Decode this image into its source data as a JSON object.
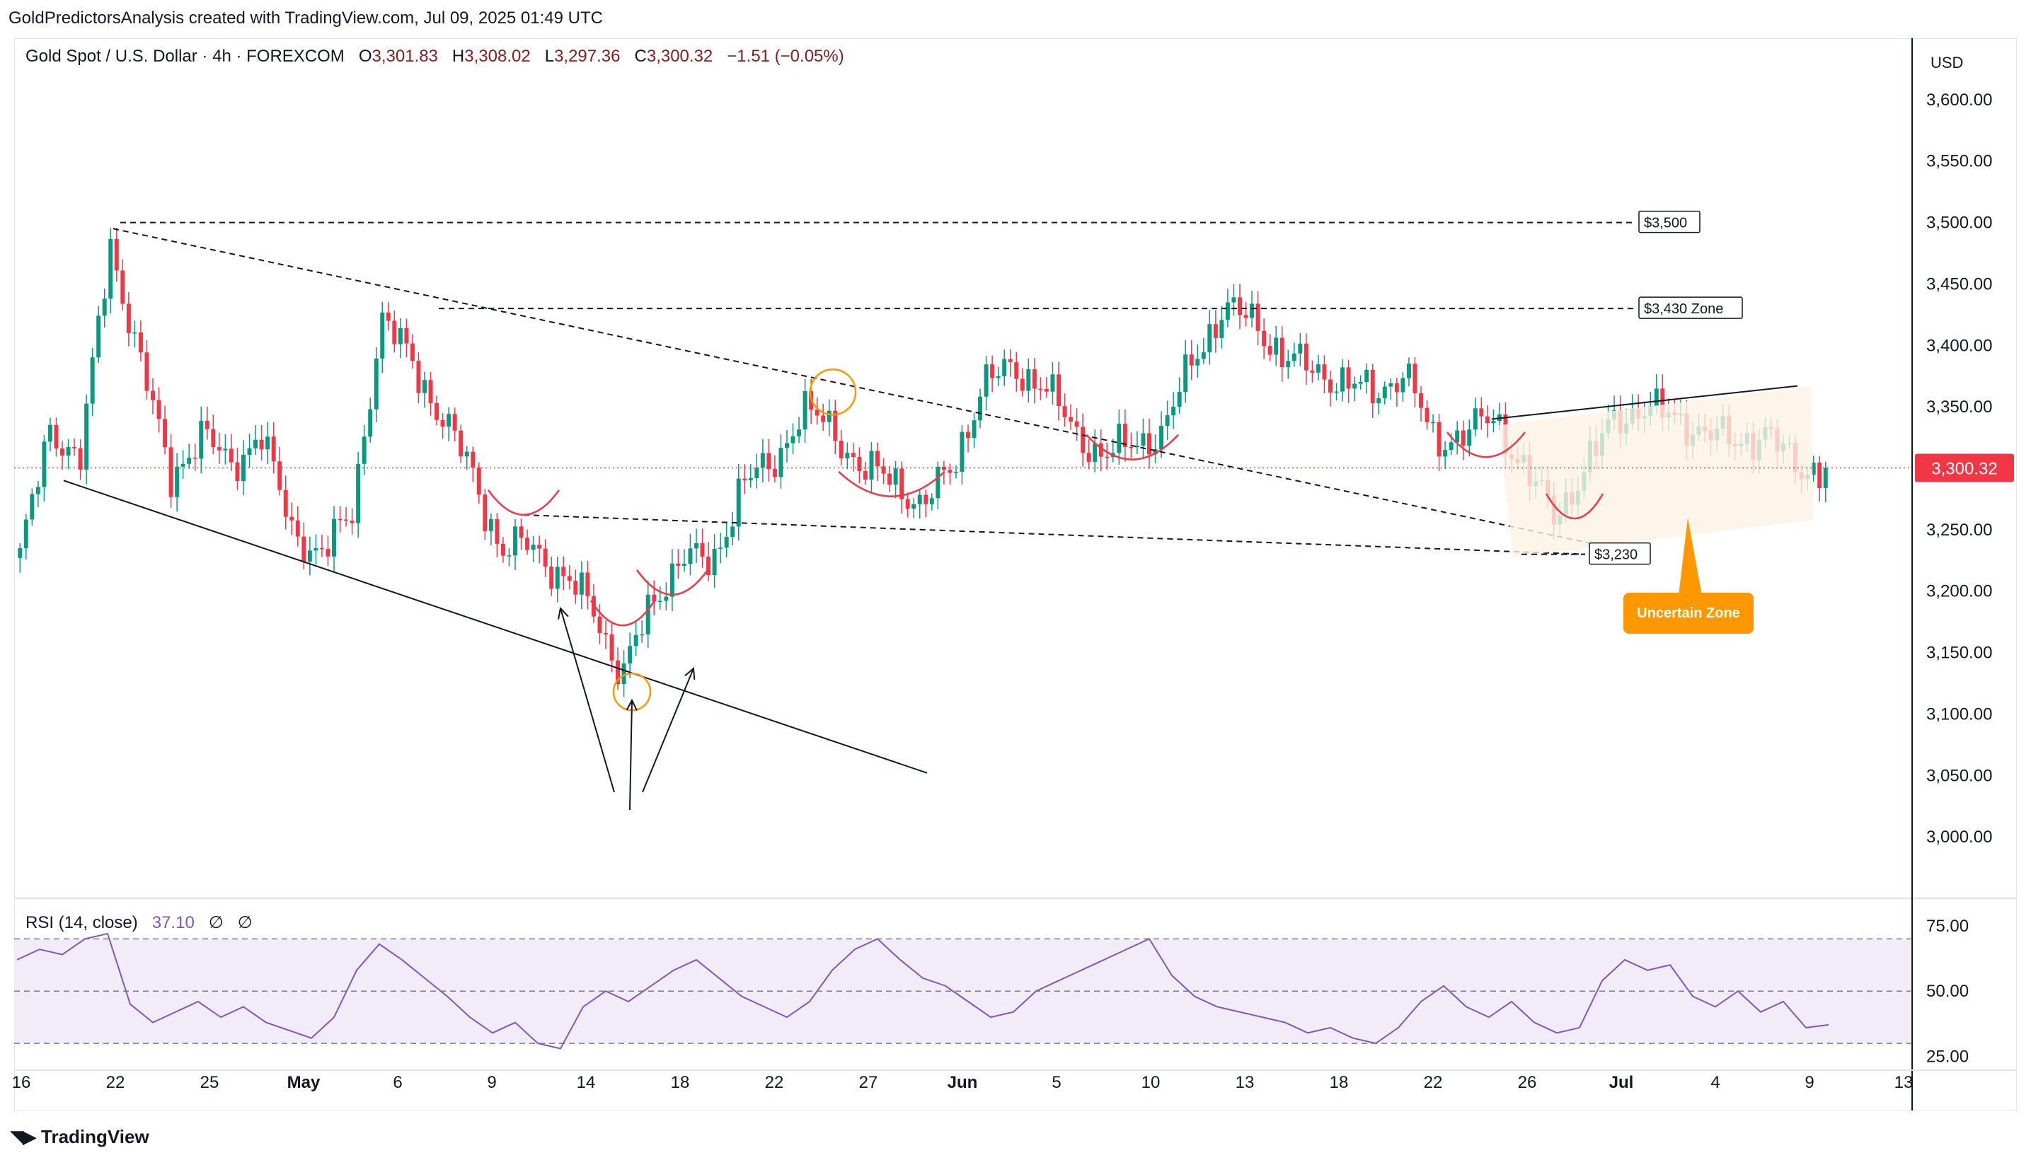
{
  "attribution": "GoldPredictorsAnalysis created with TradingView.com, Jul 09, 2025 01:49 UTC",
  "header": {
    "symbol": "Gold Spot / U.S. Dollar · 4h · FOREXCOM",
    "open_label": "O",
    "open": "3,301.83",
    "high_label": "H",
    "high": "3,308.02",
    "low_label": "L",
    "low": "3,297.36",
    "close_label": "C",
    "close": "3,300.32",
    "change": "−1.51 (−0.05%)"
  },
  "currency": "USD",
  "last_price_badge": "3,300.32",
  "branding": "TradingView",
  "colors": {
    "up": "#089981",
    "down": "#f23645",
    "rsi": "#7e57c2",
    "rsi_band": "#ede7f6",
    "badge": "#f23645",
    "uncertain_fill": "#fdf3e3",
    "callout": "#ff9800",
    "curve": "#f23645",
    "circle": "#ff9800"
  },
  "chart_data": [
    {
      "type": "candlestick",
      "title": "Gold Spot / U.S. Dollar · 4h · FOREXCOM",
      "ylabel": "USD",
      "ylim": [
        2950,
        3650
      ],
      "y_ticks": [
        "3,000.00",
        "3,050.00",
        "3,100.00",
        "3,150.00",
        "3,200.00",
        "3,250.00",
        "3,300.00",
        "3,350.00",
        "3,400.00",
        "3,450.00",
        "3,500.00",
        "3,550.00",
        "3,600.00"
      ],
      "x_ticks": [
        "16",
        "22",
        "25",
        "May",
        "6",
        "9",
        "14",
        "18",
        "22",
        "27",
        "Jun",
        "5",
        "10",
        "13",
        "18",
        "22",
        "26",
        "Jul",
        "4",
        "9",
        "13"
      ],
      "close_path": [
        {
          "x": "16",
          "y": 3230
        },
        {
          "x": "18",
          "y": 3330
        },
        {
          "x": "20",
          "y": 3310
        },
        {
          "x": "22",
          "y": 3480
        },
        {
          "x": "23",
          "y": 3390
        },
        {
          "x": "24",
          "y": 3290
        },
        {
          "x": "25",
          "y": 3330
        },
        {
          "x": "26",
          "y": 3300
        },
        {
          "x": "28",
          "y": 3330
        },
        {
          "x": "May",
          "y": 3250
        },
        {
          "x": "2",
          "y": 3230
        },
        {
          "x": "4",
          "y": 3260
        },
        {
          "x": "6",
          "y": 3420
        },
        {
          "x": "7",
          "y": 3390
        },
        {
          "x": "8",
          "y": 3340
        },
        {
          "x": "9",
          "y": 3300
        },
        {
          "x": "10",
          "y": 3230
        },
        {
          "x": "12",
          "y": 3240
        },
        {
          "x": "13",
          "y": 3210
        },
        {
          "x": "14",
          "y": 3190
        },
        {
          "x": "15",
          "y": 3130
        },
        {
          "x": "16",
          "y": 3190
        },
        {
          "x": "17",
          "y": 3230
        },
        {
          "x": "18",
          "y": 3220
        },
        {
          "x": "20",
          "y": 3290
        },
        {
          "x": "22",
          "y": 3300
        },
        {
          "x": "23",
          "y": 3350
        },
        {
          "x": "24",
          "y": 3330
        },
        {
          "x": "26",
          "y": 3300
        },
        {
          "x": "27",
          "y": 3290
        },
        {
          "x": "28",
          "y": 3270
        },
        {
          "x": "30",
          "y": 3300
        },
        {
          "x": "Jun",
          "y": 3370
        },
        {
          "x": "3",
          "y": 3380
        },
        {
          "x": "5",
          "y": 3370
        },
        {
          "x": "6",
          "y": 3330
        },
        {
          "x": "8",
          "y": 3310
        },
        {
          "x": "9",
          "y": 3320
        },
        {
          "x": "10",
          "y": 3330
        },
        {
          "x": "12",
          "y": 3390
        },
        {
          "x": "13",
          "y": 3430
        },
        {
          "x": "14",
          "y": 3420
        },
        {
          "x": "16",
          "y": 3390
        },
        {
          "x": "18",
          "y": 3380
        },
        {
          "x": "20",
          "y": 3370
        },
        {
          "x": "22",
          "y": 3360
        },
        {
          "x": "23",
          "y": 3380
        },
        {
          "x": "24",
          "y": 3320
        },
        {
          "x": "25",
          "y": 3330
        },
        {
          "x": "26",
          "y": 3340
        },
        {
          "x": "27",
          "y": 3300
        },
        {
          "x": "28",
          "y": 3260
        },
        {
          "x": "30",
          "y": 3300
        },
        {
          "x": "Jul",
          "y": 3340
        },
        {
          "x": "2",
          "y": 3350
        },
        {
          "x": "3",
          "y": 3340
        },
        {
          "x": "4",
          "y": 3330
        },
        {
          "x": "6",
          "y": 3320
        },
        {
          "x": "7",
          "y": 3330
        },
        {
          "x": "8",
          "y": 3300
        },
        {
          "x": "9",
          "y": 3300
        }
      ],
      "last": 3300.32,
      "annotations": {
        "levels": [
          {
            "label": "$3,500",
            "value": 3500
          },
          {
            "label": "$3,430 Zone",
            "value": 3430
          },
          {
            "label": "$3,230",
            "value": 3230
          }
        ],
        "callout": "Uncertain Zone"
      }
    },
    {
      "type": "line",
      "title": "RSI (14, close)",
      "values_label": "37.10",
      "na1": "∅",
      "na2": "∅",
      "ylim": [
        20,
        85
      ],
      "y_ticks": [
        "25.00",
        "50.00",
        "75.00"
      ],
      "bands": [
        30,
        50,
        70
      ],
      "series": [
        {
          "values": [
            62,
            66,
            64,
            70,
            72,
            45,
            38,
            42,
            46,
            40,
            44,
            38,
            35,
            32,
            40,
            58,
            68,
            62,
            55,
            48,
            40,
            34,
            38,
            30,
            28,
            44,
            50,
            46,
            52,
            58,
            62,
            55,
            48,
            44,
            40,
            46,
            58,
            66,
            70,
            62,
            55,
            52,
            46,
            40,
            42,
            50,
            54,
            58,
            62,
            66,
            70,
            56,
            48,
            44,
            42,
            40,
            38,
            34,
            36,
            32,
            30,
            36,
            46,
            52,
            44,
            40,
            46,
            38,
            34,
            36,
            54,
            62,
            58,
            60,
            48,
            44,
            50,
            42,
            46,
            36,
            37.1
          ]
        }
      ]
    }
  ]
}
